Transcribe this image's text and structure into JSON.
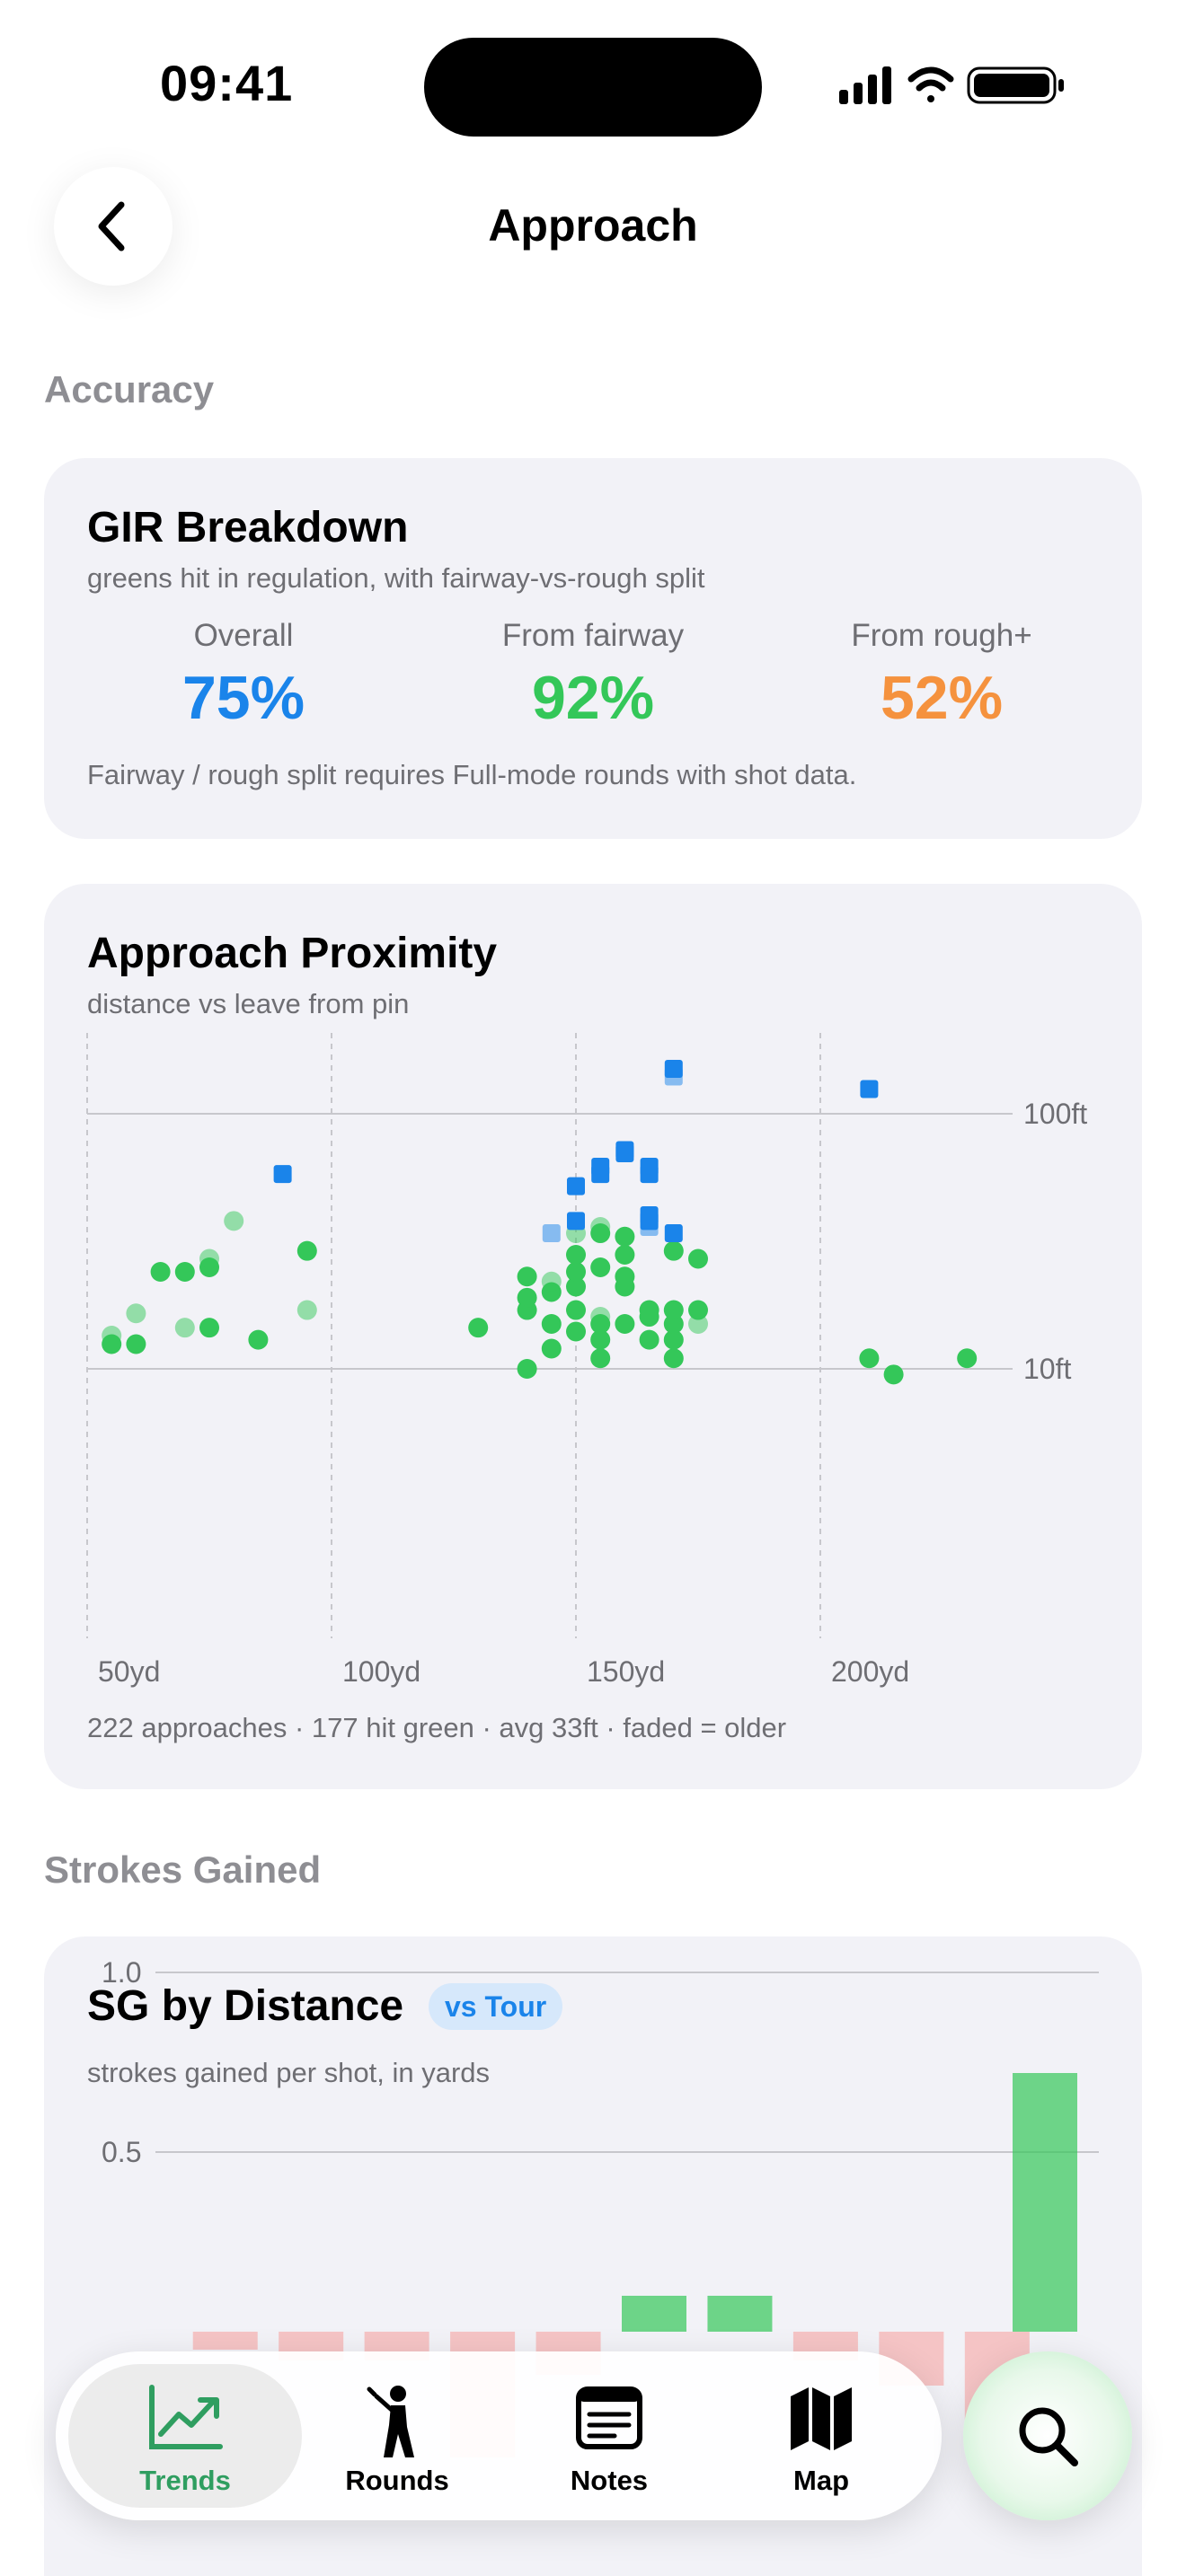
{
  "status_bar": {
    "time": "09:41"
  },
  "nav": {
    "title": "Approach"
  },
  "sections": {
    "accuracy": "Accuracy",
    "strokes_gained": "Strokes Gained"
  },
  "gir": {
    "title": "GIR Breakdown",
    "subtitle": "greens hit in regulation, with fairway-vs-rough split",
    "stats": [
      {
        "label": "Overall",
        "value": "75%",
        "color": "#1a84ea"
      },
      {
        "label": "From fairway",
        "value": "92%",
        "color": "#34c759"
      },
      {
        "label": "From rough+",
        "value": "52%",
        "color": "#f5923e"
      }
    ],
    "footnote": "Fairway / rough split requires Full-mode rounds with shot data."
  },
  "proximity": {
    "title": "Approach Proximity",
    "subtitle": "distance vs leave from pin",
    "footnote": "222 approaches · 177 hit green · avg 33ft · faded = older"
  },
  "sg": {
    "title": "SG by Distance",
    "badge": "vs Tour",
    "subtitle": "strokes gained per shot, in yards"
  },
  "chart_data": [
    {
      "type": "scatter",
      "title": "Approach Proximity",
      "x_unit": "yd",
      "y_unit": "ft",
      "y_scale": "log",
      "x_ticks": [
        "50yd",
        "100yd",
        "150yd",
        "200yd"
      ],
      "y_ticks": [
        "100ft",
        "10ft"
      ],
      "xlim": [
        50,
        240
      ],
      "ylim": [
        1,
        150
      ],
      "colors": {
        "hit": "#34c759",
        "miss": "#1a84ea"
      },
      "points": [
        {
          "x": 55,
          "y": 13.5,
          "hit": true,
          "old": true
        },
        {
          "x": 55,
          "y": 12.5,
          "hit": true,
          "old": false
        },
        {
          "x": 60,
          "y": 16.5,
          "hit": true,
          "old": true
        },
        {
          "x": 60,
          "y": 12.5,
          "hit": true,
          "old": false
        },
        {
          "x": 65,
          "y": 24,
          "hit": true,
          "old": false
        },
        {
          "x": 70,
          "y": 24,
          "hit": true,
          "old": false
        },
        {
          "x": 70,
          "y": 14.5,
          "hit": true,
          "old": true
        },
        {
          "x": 75,
          "y": 25,
          "hit": true,
          "old": false
        },
        {
          "x": 75,
          "y": 27,
          "hit": true,
          "old": true
        },
        {
          "x": 75,
          "y": 14.5,
          "hit": true,
          "old": false
        },
        {
          "x": 80,
          "y": 38,
          "hit": true,
          "old": true
        },
        {
          "x": 85,
          "y": 13,
          "hit": true,
          "old": false
        },
        {
          "x": 90,
          "y": 58,
          "hit": false,
          "old": false
        },
        {
          "x": 95,
          "y": 29,
          "hit": true,
          "old": false
        },
        {
          "x": 95,
          "y": 17,
          "hit": true,
          "old": true
        },
        {
          "x": 130,
          "y": 14.5,
          "hit": true,
          "old": false
        },
        {
          "x": 140,
          "y": 10,
          "hit": true,
          "old": false
        },
        {
          "x": 140,
          "y": 17,
          "hit": true,
          "old": false
        },
        {
          "x": 140,
          "y": 19,
          "hit": true,
          "old": false
        },
        {
          "x": 140,
          "y": 23,
          "hit": true,
          "old": false
        },
        {
          "x": 145,
          "y": 12,
          "hit": true,
          "old": false
        },
        {
          "x": 145,
          "y": 15,
          "hit": true,
          "old": false
        },
        {
          "x": 145,
          "y": 20,
          "hit": true,
          "old": false
        },
        {
          "x": 145,
          "y": 22,
          "hit": true,
          "old": true
        },
        {
          "x": 145,
          "y": 34,
          "hit": false,
          "old": true
        },
        {
          "x": 150,
          "y": 14,
          "hit": true,
          "old": false
        },
        {
          "x": 150,
          "y": 17,
          "hit": true,
          "old": false
        },
        {
          "x": 150,
          "y": 21,
          "hit": true,
          "old": false
        },
        {
          "x": 150,
          "y": 24,
          "hit": true,
          "old": false
        },
        {
          "x": 150,
          "y": 28,
          "hit": true,
          "old": false
        },
        {
          "x": 150,
          "y": 34,
          "hit": true,
          "old": true
        },
        {
          "x": 150,
          "y": 38,
          "hit": false,
          "old": false
        },
        {
          "x": 150,
          "y": 52,
          "hit": false,
          "old": false
        },
        {
          "x": 155,
          "y": 11,
          "hit": true,
          "old": false
        },
        {
          "x": 155,
          "y": 13,
          "hit": true,
          "old": false
        },
        {
          "x": 155,
          "y": 15,
          "hit": true,
          "old": false
        },
        {
          "x": 155,
          "y": 16,
          "hit": true,
          "old": true
        },
        {
          "x": 155,
          "y": 25,
          "hit": true,
          "old": false
        },
        {
          "x": 155,
          "y": 34,
          "hit": true,
          "old": false
        },
        {
          "x": 155,
          "y": 36,
          "hit": true,
          "old": true
        },
        {
          "x": 155,
          "y": 58,
          "hit": false,
          "old": false
        },
        {
          "x": 155,
          "y": 62,
          "hit": false,
          "old": false
        },
        {
          "x": 160,
          "y": 15,
          "hit": true,
          "old": false
        },
        {
          "x": 160,
          "y": 21,
          "hit": true,
          "old": false
        },
        {
          "x": 160,
          "y": 23,
          "hit": true,
          "old": false
        },
        {
          "x": 160,
          "y": 28,
          "hit": true,
          "old": false
        },
        {
          "x": 160,
          "y": 33,
          "hit": true,
          "old": false
        },
        {
          "x": 160,
          "y": 70,
          "hit": false,
          "old": false
        },
        {
          "x": 160,
          "y": 72,
          "hit": false,
          "old": false
        },
        {
          "x": 165,
          "y": 13,
          "hit": true,
          "old": false
        },
        {
          "x": 165,
          "y": 16,
          "hit": true,
          "old": false
        },
        {
          "x": 165,
          "y": 17,
          "hit": true,
          "old": false
        },
        {
          "x": 165,
          "y": 36,
          "hit": false,
          "old": true
        },
        {
          "x": 165,
          "y": 38,
          "hit": false,
          "old": false
        },
        {
          "x": 165,
          "y": 40,
          "hit": false,
          "old": false
        },
        {
          "x": 165,
          "y": 58,
          "hit": false,
          "old": false
        },
        {
          "x": 165,
          "y": 62,
          "hit": false,
          "old": false
        },
        {
          "x": 170,
          "y": 11,
          "hit": true,
          "old": false
        },
        {
          "x": 170,
          "y": 13,
          "hit": true,
          "old": false
        },
        {
          "x": 170,
          "y": 15,
          "hit": true,
          "old": false
        },
        {
          "x": 170,
          "y": 17,
          "hit": true,
          "old": false
        },
        {
          "x": 170,
          "y": 29,
          "hit": true,
          "old": false
        },
        {
          "x": 170,
          "y": 34,
          "hit": false,
          "old": false
        },
        {
          "x": 170,
          "y": 140,
          "hit": false,
          "old": true
        },
        {
          "x": 170,
          "y": 150,
          "hit": false,
          "old": false
        },
        {
          "x": 175,
          "y": 15,
          "hit": true,
          "old": true
        },
        {
          "x": 175,
          "y": 17,
          "hit": true,
          "old": false
        },
        {
          "x": 175,
          "y": 27,
          "hit": true,
          "old": false
        },
        {
          "x": 210,
          "y": 11,
          "hit": true,
          "old": false
        },
        {
          "x": 210,
          "y": 125,
          "hit": false,
          "old": false
        },
        {
          "x": 215,
          "y": 9.5,
          "hit": true,
          "old": false
        },
        {
          "x": 230,
          "y": 11,
          "hit": true,
          "old": false
        }
      ]
    },
    {
      "type": "bar",
      "title": "SG by Distance",
      "ylabel": "",
      "y_ticks": [
        "1.0",
        "0.5"
      ],
      "ylim": [
        -1.0,
        1.0
      ],
      "colors": {
        "positive": "#34c759",
        "negative": "#ff3b30"
      },
      "values": [
        -0.05,
        -0.08,
        -0.08,
        -0.35,
        -0.12,
        0.1,
        0.1,
        -0.08,
        -0.15,
        -0.3,
        0.72
      ]
    }
  ],
  "tabbar": {
    "tabs": [
      {
        "label": "Trends",
        "icon": "trend-chart-icon",
        "active": true
      },
      {
        "label": "Rounds",
        "icon": "golfer-icon",
        "active": false
      },
      {
        "label": "Notes",
        "icon": "notes-icon",
        "active": false
      },
      {
        "label": "Map",
        "icon": "map-icon",
        "active": false
      }
    ],
    "search_icon": "search-icon"
  }
}
